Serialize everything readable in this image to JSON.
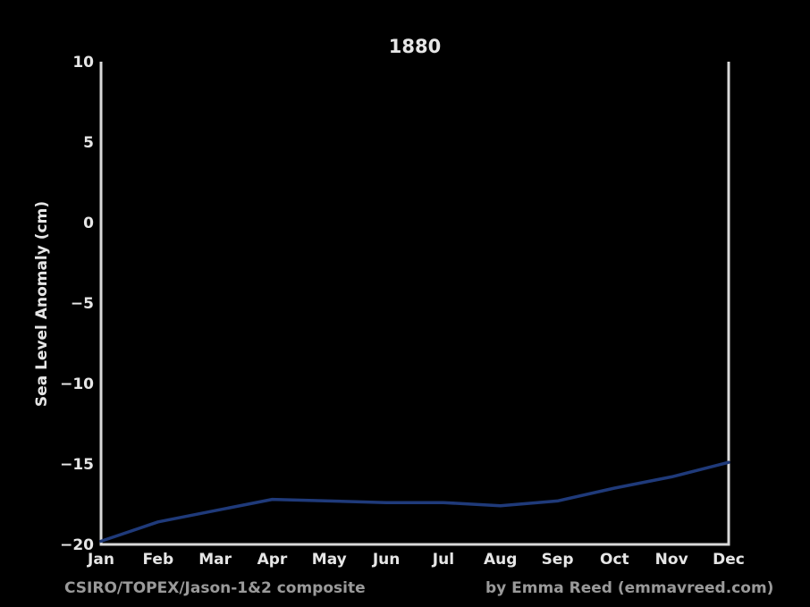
{
  "chart_data": {
    "type": "line",
    "title": "1880",
    "xlabel": "",
    "ylabel": "Sea Level Anomaly (cm)",
    "categories": [
      "Jan",
      "Feb",
      "Mar",
      "Apr",
      "May",
      "Jun",
      "Jul",
      "Aug",
      "Sep",
      "Oct",
      "Nov",
      "Dec"
    ],
    "ylim": [
      -20,
      10
    ],
    "yticks": [
      "10",
      "5",
      "0",
      "−5",
      "−10",
      "−15",
      "−20"
    ],
    "ytick_values": [
      10,
      5,
      0,
      -5,
      -10,
      -15,
      -20
    ],
    "grid": false,
    "series": [
      {
        "values": [
          -19.8,
          -18.6,
          -17.9,
          -17.2,
          -17.3,
          -17.4,
          -17.4,
          -17.6,
          -17.3,
          -16.5,
          -15.8,
          -14.9
        ],
        "color": "#1f3a7a"
      }
    ]
  },
  "footer": {
    "source": "CSIRO/TOPEX/Jason-1&2 composite",
    "credit": "by Emma Reed (emmavreed.com)"
  },
  "colors": {
    "background": "#000000",
    "axes": "#d9d9d9",
    "text": "#e6e6e6",
    "footer_text": "#9a9a9a",
    "line": "#1f3a7a"
  }
}
